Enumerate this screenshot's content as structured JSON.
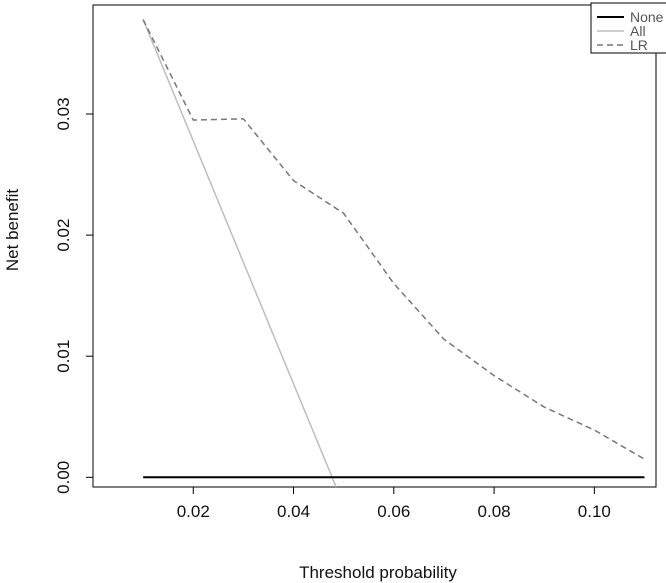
{
  "chart_data": {
    "type": "line",
    "title": "",
    "xlabel": "Threshold probability",
    "ylabel": "Net benefit",
    "xlim": [
      0.0,
      0.1123
    ],
    "ylim": [
      -0.0008,
      0.039
    ],
    "x_ticks": [
      0.02,
      0.04,
      0.06,
      0.08,
      0.1
    ],
    "x_tick_labels": [
      "0.02",
      "0.04",
      "0.06",
      "0.08",
      "0.10"
    ],
    "y_ticks": [
      0.0,
      0.01,
      0.02,
      0.03
    ],
    "y_tick_labels": [
      "0.00",
      "0.01",
      "0.02",
      "0.03"
    ],
    "grid": false,
    "legend_position": "top-right",
    "series": [
      {
        "name": "None",
        "color": "#000000",
        "style": "solid",
        "x": [
          0.01,
          0.11
        ],
        "y": [
          0.0,
          0.0
        ]
      },
      {
        "name": "All",
        "color": "#bdbdbd",
        "style": "solid",
        "x": [
          0.01,
          0.0485
        ],
        "y": [
          0.0378,
          -0.0008
        ]
      },
      {
        "name": "LR",
        "color": "#777777",
        "style": "dashed",
        "x": [
          0.01,
          0.02,
          0.03,
          0.04,
          0.05,
          0.06,
          0.07,
          0.08,
          0.09,
          0.1,
          0.11
        ],
        "y": [
          0.0378,
          0.0295,
          0.0296,
          0.0245,
          0.0218,
          0.016,
          0.0114,
          0.0084,
          0.0058,
          0.0039,
          0.0015
        ]
      }
    ]
  }
}
